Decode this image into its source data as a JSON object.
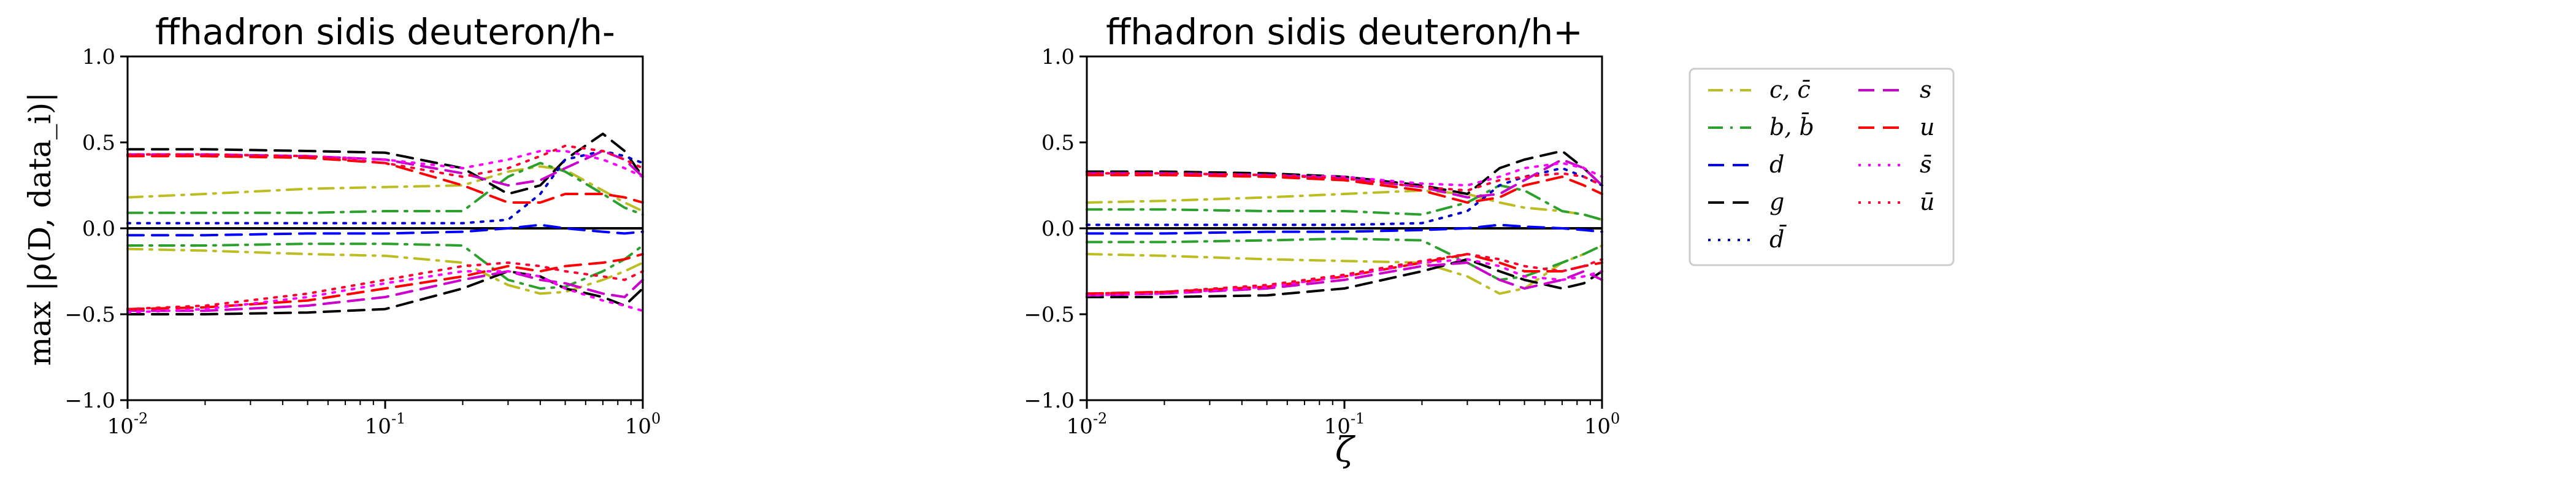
{
  "figure": {
    "ylabel": "max |ρ(D, data_i)|",
    "xlabel_shared": "ζ"
  },
  "legend": {
    "entries": [
      {
        "label": "c, c̄",
        "color": "#bcbd22",
        "dash": "dashdot"
      },
      {
        "label": "b, b̄",
        "color": "#2ca02c",
        "dash": "dashdot"
      },
      {
        "label": "d",
        "color": "#0000ff",
        "dash": "dashed"
      },
      {
        "label": "g",
        "color": "#000000",
        "dash": "dashed"
      },
      {
        "label": "d̄",
        "color": "#0000cc",
        "dash": "dotted"
      },
      {
        "label": "s",
        "color": "#cc00cc",
        "dash": "dashed"
      },
      {
        "label": "u",
        "color": "#ff0000",
        "dash": "dashed"
      },
      {
        "label": "s̄",
        "color": "#ff00ff",
        "dash": "dotted"
      },
      {
        "label": "ū",
        "color": "#ff0033",
        "dash": "dotted"
      }
    ]
  },
  "chart_data": [
    {
      "type": "line",
      "title": "ffhadron sidis deuteron/h-",
      "xlabel": "",
      "ylabel": "max |ρ(D, data_i)|",
      "xscale": "log",
      "xlim": [
        0.01,
        1
      ],
      "ylim": [
        -1.0,
        1.0
      ],
      "xticks": [
        "10^-2",
        "10^-1",
        "10^0"
      ],
      "yticks": [
        "1.0",
        "0.5",
        "0.0",
        "−0.5",
        "−1.0"
      ],
      "x": [
        0.01,
        0.02,
        0.05,
        0.1,
        0.2,
        0.3,
        0.4,
        0.5,
        0.7,
        0.85,
        1.0
      ],
      "series": [
        {
          "name": "c, c̄",
          "values": [
            0.18,
            0.2,
            0.23,
            0.24,
            0.25,
            0.33,
            0.36,
            0.34,
            0.22,
            0.15,
            0.1
          ]
        },
        {
          "name": "c, c̄",
          "values": [
            -0.12,
            -0.13,
            -0.15,
            -0.16,
            -0.2,
            -0.33,
            -0.38,
            -0.37,
            -0.3,
            -0.25,
            -0.2
          ]
        },
        {
          "name": "b, b̄",
          "values": [
            0.09,
            0.09,
            0.09,
            0.1,
            0.1,
            0.3,
            0.38,
            0.33,
            0.2,
            0.12,
            0.08
          ]
        },
        {
          "name": "b, b̄",
          "values": [
            -0.1,
            -0.1,
            -0.09,
            -0.09,
            -0.1,
            -0.3,
            -0.35,
            -0.34,
            -0.25,
            -0.18,
            -0.1
          ]
        },
        {
          "name": "d",
          "values": [
            -0.04,
            -0.04,
            -0.03,
            -0.03,
            -0.02,
            0.0,
            0.02,
            0.0,
            -0.02,
            -0.03,
            -0.02
          ]
        },
        {
          "name": "g",
          "values": [
            0.46,
            0.46,
            0.45,
            0.44,
            0.35,
            0.2,
            0.25,
            0.4,
            0.55,
            0.45,
            0.3
          ]
        },
        {
          "name": "g",
          "values": [
            -0.5,
            -0.5,
            -0.49,
            -0.47,
            -0.35,
            -0.25,
            -0.28,
            -0.35,
            -0.4,
            -0.45,
            -0.35
          ]
        },
        {
          "name": "d̄",
          "values": [
            0.03,
            0.03,
            0.03,
            0.03,
            0.03,
            0.05,
            0.2,
            0.4,
            0.45,
            0.42,
            0.38
          ]
        },
        {
          "name": "s",
          "values": [
            0.43,
            0.43,
            0.42,
            0.4,
            0.32,
            0.25,
            0.28,
            0.35,
            0.45,
            0.4,
            0.3
          ]
        },
        {
          "name": "s",
          "values": [
            -0.48,
            -0.48,
            -0.45,
            -0.4,
            -0.3,
            -0.25,
            -0.3,
            -0.32,
            -0.38,
            -0.4,
            -0.3
          ]
        },
        {
          "name": "u",
          "values": [
            0.42,
            0.42,
            0.41,
            0.38,
            0.25,
            0.15,
            0.15,
            0.2,
            0.2,
            0.18,
            0.15
          ]
        },
        {
          "name": "u",
          "values": [
            -0.47,
            -0.46,
            -0.42,
            -0.35,
            -0.28,
            -0.22,
            -0.25,
            -0.22,
            -0.2,
            -0.18,
            -0.15
          ]
        },
        {
          "name": "s̄",
          "values": [
            0.43,
            0.43,
            0.42,
            0.4,
            0.35,
            0.4,
            0.45,
            0.45,
            0.4,
            0.35,
            0.3
          ]
        },
        {
          "name": "s̄",
          "values": [
            -0.49,
            -0.47,
            -0.4,
            -0.32,
            -0.25,
            -0.25,
            -0.28,
            -0.35,
            -0.42,
            -0.45,
            -0.48
          ]
        },
        {
          "name": "ū",
          "values": [
            0.43,
            0.43,
            0.42,
            0.38,
            0.3,
            0.35,
            0.42,
            0.48,
            0.45,
            0.4,
            0.35
          ]
        },
        {
          "name": "ū",
          "values": [
            -0.47,
            -0.45,
            -0.38,
            -0.3,
            -0.22,
            -0.2,
            -0.22,
            -0.25,
            -0.28,
            -0.3,
            -0.25
          ]
        }
      ]
    },
    {
      "type": "line",
      "title": "ffhadron sidis deuteron/h+",
      "xlabel": "ζ",
      "ylabel": "",
      "xscale": "log",
      "xlim": [
        0.01,
        1
      ],
      "ylim": [
        -1.0,
        1.0
      ],
      "xticks": [
        "10^-2",
        "10^-1",
        "10^0"
      ],
      "yticks": [
        "1.0",
        "0.5",
        "0.0",
        "−0.5",
        "−1.0"
      ],
      "x": [
        0.01,
        0.02,
        0.05,
        0.1,
        0.2,
        0.3,
        0.4,
        0.5,
        0.7,
        0.85,
        1.0
      ],
      "series": [
        {
          "name": "c, c̄",
          "values": [
            0.15,
            0.16,
            0.18,
            0.2,
            0.22,
            0.2,
            0.15,
            0.12,
            0.1,
            0.08,
            0.05
          ]
        },
        {
          "name": "c, c̄",
          "values": [
            -0.15,
            -0.16,
            -0.18,
            -0.19,
            -0.2,
            -0.28,
            -0.38,
            -0.35,
            -0.2,
            -0.15,
            -0.1
          ]
        },
        {
          "name": "b, b̄",
          "values": [
            0.11,
            0.11,
            0.1,
            0.1,
            0.08,
            0.15,
            0.25,
            0.22,
            0.1,
            0.08,
            0.05
          ]
        },
        {
          "name": "b, b̄",
          "values": [
            -0.08,
            -0.08,
            -0.07,
            -0.06,
            -0.07,
            -0.2,
            -0.3,
            -0.28,
            -0.2,
            -0.15,
            -0.1
          ]
        },
        {
          "name": "d",
          "values": [
            -0.03,
            -0.03,
            -0.02,
            -0.02,
            -0.01,
            0.0,
            0.02,
            0.01,
            0.0,
            -0.01,
            -0.02
          ]
        },
        {
          "name": "g",
          "values": [
            0.33,
            0.33,
            0.32,
            0.3,
            0.25,
            0.2,
            0.35,
            0.4,
            0.45,
            0.35,
            0.25
          ]
        },
        {
          "name": "g",
          "values": [
            -0.4,
            -0.4,
            -0.39,
            -0.35,
            -0.25,
            -0.18,
            -0.25,
            -0.3,
            -0.35,
            -0.32,
            -0.25
          ]
        },
        {
          "name": "d̄",
          "values": [
            0.02,
            0.02,
            0.02,
            0.02,
            0.03,
            0.1,
            0.25,
            0.3,
            0.35,
            0.3,
            0.25
          ]
        },
        {
          "name": "s",
          "values": [
            0.32,
            0.32,
            0.31,
            0.29,
            0.24,
            0.18,
            0.2,
            0.28,
            0.4,
            0.35,
            0.25
          ]
        },
        {
          "name": "s",
          "values": [
            -0.39,
            -0.38,
            -0.35,
            -0.3,
            -0.22,
            -0.2,
            -0.3,
            -0.35,
            -0.3,
            -0.25,
            -0.3
          ]
        },
        {
          "name": "u",
          "values": [
            0.31,
            0.31,
            0.3,
            0.28,
            0.22,
            0.15,
            0.18,
            0.25,
            0.3,
            0.25,
            0.2
          ]
        },
        {
          "name": "u",
          "values": [
            -0.38,
            -0.37,
            -0.34,
            -0.28,
            -0.2,
            -0.15,
            -0.2,
            -0.25,
            -0.25,
            -0.22,
            -0.2
          ]
        },
        {
          "name": "s̄",
          "values": [
            0.32,
            0.32,
            0.31,
            0.3,
            0.26,
            0.25,
            0.3,
            0.35,
            0.38,
            0.35,
            0.3
          ]
        },
        {
          "name": "s̄",
          "values": [
            -0.39,
            -0.38,
            -0.34,
            -0.28,
            -0.2,
            -0.18,
            -0.22,
            -0.28,
            -0.3,
            -0.28,
            -0.25
          ]
        },
        {
          "name": "ū",
          "values": [
            0.32,
            0.32,
            0.31,
            0.29,
            0.24,
            0.22,
            0.28,
            0.3,
            0.32,
            0.3,
            0.25
          ]
        },
        {
          "name": "ū",
          "values": [
            -0.38,
            -0.37,
            -0.33,
            -0.27,
            -0.19,
            -0.15,
            -0.18,
            -0.22,
            -0.25,
            -0.22,
            -0.18
          ]
        }
      ]
    }
  ]
}
